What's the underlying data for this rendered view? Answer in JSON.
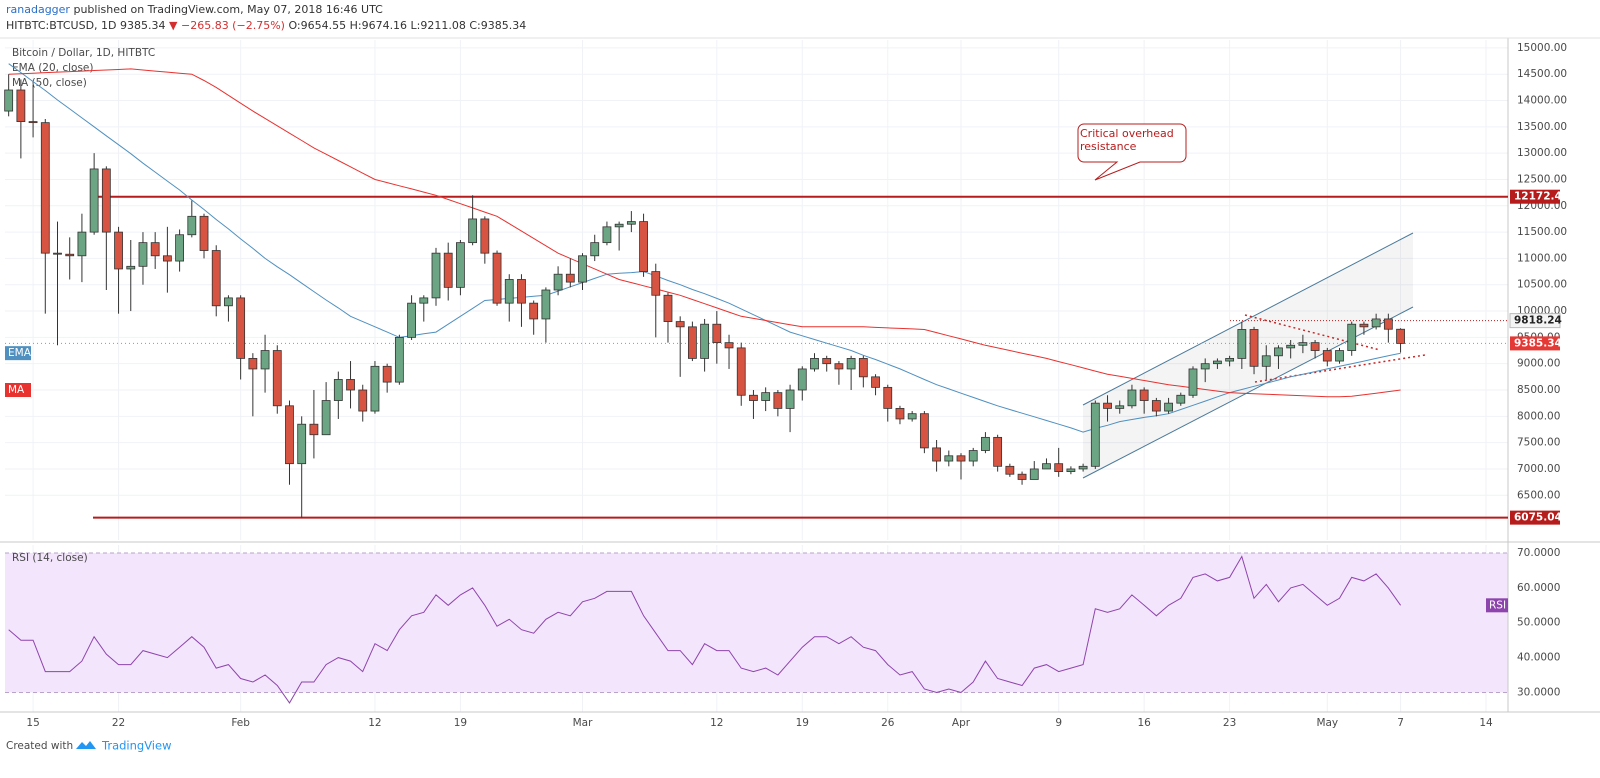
{
  "header": {
    "author": "ranadagger",
    "published": "published on TradingView.com, May 07, 2018 16:46 UTC",
    "symbol": "HITBTC:BTCUSD, 1D",
    "price": "9385.34",
    "arrow": "▼",
    "change": "−265.83 (−2.75%)",
    "ohlc": "O:9654.55 H:9674.16 L:9211.08 C:9385.34"
  },
  "footer": {
    "created": "Created with",
    "brand": "TradingView"
  },
  "chart_data": [
    {
      "type": "candlestick",
      "title": "Bitcoin / Dollar, 1D, HITBTC",
      "up_color": "#6ba583",
      "down_color": "#d75442",
      "open": [
        13800,
        14200,
        13600,
        13580,
        11100,
        11080,
        11050,
        11500,
        12700,
        11500,
        10800,
        10850,
        11300,
        11050,
        10950,
        11450,
        11800,
        11150,
        10100,
        10250,
        9100,
        8900,
        9250,
        8200,
        7100,
        7850,
        7650,
        8300,
        8700,
        8500,
        8100,
        8950,
        8650,
        9500,
        10150,
        10250,
        11100,
        10450,
        11300,
        11750,
        11100,
        10150,
        10600,
        10150,
        9850,
        10400,
        10700,
        10550,
        11050,
        11300,
        11600,
        11650,
        11700,
        10750,
        10300,
        9800,
        9700,
        9100,
        9750,
        9400,
        9300,
        8400,
        8300,
        8450,
        8150,
        8500,
        8900,
        9100,
        9000,
        8900,
        9100,
        8750,
        8550,
        8150,
        7950,
        8050,
        7400,
        7150,
        7250,
        7150,
        7350,
        7600,
        7050,
        6900,
        6800,
        7000,
        7100,
        6950,
        7000,
        7050,
        8250,
        8150,
        8200,
        8500,
        8300,
        8100,
        8250,
        8400,
        8900,
        9000,
        9050,
        9100,
        9650,
        8950,
        9150,
        9300,
        9350,
        9400,
        9250,
        9050,
        9250,
        9750,
        9700,
        9850,
        9654.55
      ],
      "high": [
        14500,
        14400,
        14300,
        13650,
        11700,
        11400,
        11850,
        13000,
        12750,
        11600,
        11350,
        11500,
        11500,
        11600,
        11550,
        12100,
        11850,
        11250,
        10300,
        10300,
        9200,
        9550,
        9350,
        8300,
        8000,
        8500,
        8650,
        8850,
        9050,
        8600,
        9050,
        9000,
        9550,
        10300,
        10300,
        11200,
        11300,
        11350,
        12200,
        11800,
        11150,
        10700,
        10700,
        10200,
        10450,
        10850,
        11000,
        11100,
        11450,
        11700,
        11700,
        11900,
        11850,
        10900,
        10350,
        9900,
        9800,
        9850,
        10000,
        9550,
        9400,
        8500,
        8550,
        8500,
        8600,
        8950,
        9200,
        9150,
        9050,
        9150,
        9150,
        8800,
        8600,
        8200,
        8100,
        8100,
        7550,
        7350,
        7300,
        7400,
        7700,
        7650,
        7100,
        6950,
        7150,
        7200,
        7400,
        7050,
        7100,
        8300,
        8400,
        8300,
        8600,
        8550,
        8350,
        8350,
        8450,
        8950,
        9100,
        9100,
        9150,
        9800,
        9700,
        9350,
        9350,
        9450,
        9550,
        9450,
        9300,
        9300,
        9800,
        9800,
        9950,
        9950,
        9674.16
      ],
      "low": [
        13700,
        12900,
        13300,
        9950,
        9350,
        10600,
        10550,
        11450,
        10400,
        9950,
        10000,
        10500,
        10800,
        10350,
        10750,
        11400,
        11000,
        9900,
        9800,
        8700,
        8000,
        8450,
        8050,
        6700,
        6075.04,
        7200,
        7650,
        7950,
        8150,
        7900,
        8050,
        8450,
        8600,
        9450,
        9800,
        10100,
        10200,
        10300,
        11250,
        10900,
        10100,
        9800,
        9700,
        9550,
        9400,
        10300,
        10450,
        10400,
        10950,
        11250,
        11150,
        11500,
        10650,
        9500,
        9400,
        8750,
        9050,
        8850,
        9000,
        8900,
        8200,
        7950,
        8100,
        8000,
        7700,
        8300,
        8850,
        8850,
        8600,
        8500,
        8550,
        8400,
        7900,
        7850,
        7900,
        7300,
        6950,
        7050,
        6800,
        7050,
        7300,
        6950,
        6850,
        6700,
        6800,
        7000,
        6850,
        6900,
        6950,
        7000,
        7900,
        8050,
        8150,
        8050,
        8000,
        8050,
        8200,
        8350,
        8650,
        8900,
        8950,
        8900,
        8800,
        8700,
        8900,
        9100,
        9200,
        9100,
        8950,
        9000,
        9150,
        9550,
        9650,
        9400,
        9211.08
      ],
      "close": [
        14200,
        13600,
        13580,
        11100,
        11080,
        11050,
        11500,
        12700,
        11500,
        10800,
        10850,
        11300,
        11050,
        10950,
        11450,
        11800,
        11150,
        10100,
        10250,
        9100,
        8900,
        9250,
        8200,
        7100,
        7850,
        7650,
        8300,
        8700,
        8500,
        8100,
        8950,
        8650,
        9500,
        10150,
        10250,
        11100,
        10450,
        11300,
        11750,
        11100,
        10150,
        10600,
        10150,
        9850,
        10400,
        10700,
        10550,
        11050,
        11300,
        11600,
        11650,
        11700,
        10750,
        10300,
        9800,
        9700,
        9100,
        9750,
        9400,
        9300,
        8400,
        8300,
        8450,
        8150,
        8500,
        8900,
        9100,
        9000,
        8900,
        9100,
        8750,
        8550,
        8150,
        7950,
        8050,
        7400,
        7150,
        7250,
        7150,
        7350,
        7600,
        7050,
        6900,
        6800,
        7000,
        7100,
        6950,
        7000,
        7050,
        8250,
        8150,
        8200,
        8500,
        8300,
        8100,
        8250,
        8400,
        8900,
        9000,
        9050,
        9100,
        9650,
        8950,
        9150,
        9300,
        9350,
        9400,
        9250,
        9050,
        9250,
        9750,
        9700,
        9850,
        9654.55,
        9385.34
      ],
      "indicators": [
        {
          "name": "EMA (20, close)",
          "tag": "EMA",
          "color": "#4f90c0",
          "values": [
            14700,
            14530,
            14360,
            14190,
            14010,
            13840,
            13670,
            13500,
            13330,
            13160,
            12990,
            12810,
            12640,
            12470,
            12300,
            12110,
            11930,
            11740,
            11560,
            11370,
            11190,
            11000,
            10840,
            10690,
            10530,
            10370,
            10210,
            10060,
            9900,
            9800,
            9700,
            9600,
            9500,
            9530,
            9570,
            9600,
            9750,
            9900,
            10050,
            10200,
            10220,
            10240,
            10260,
            10280,
            10300,
            10380,
            10460,
            10540,
            10620,
            10700,
            10720,
            10730,
            10750,
            10670,
            10580,
            10500,
            10410,
            10330,
            10240,
            10150,
            10040,
            9930,
            9820,
            9710,
            9600,
            9530,
            9460,
            9390,
            9320,
            9250,
            9160,
            9080,
            8990,
            8900,
            8800,
            8700,
            8600,
            8520,
            8440,
            8360,
            8280,
            8200,
            8130,
            8060,
            7990,
            7920,
            7850,
            7780,
            7700,
            7770,
            7830,
            7900,
            7940,
            7980,
            8010,
            8050,
            8130,
            8210,
            8290,
            8370,
            8450,
            8510,
            8570,
            8630,
            8690,
            8750,
            8800,
            8850,
            8900,
            8950,
            9000,
            9050,
            9100,
            9150,
            9200
          ]
        },
        {
          "name": "MA (50, close)",
          "tag": "MA",
          "color": "#e8322f",
          "values": [
            14500,
            14510,
            14520,
            14530,
            14540,
            14550,
            14560,
            14570,
            14580,
            14590,
            14600,
            14580,
            14560,
            14540,
            14520,
            14500,
            14380,
            14250,
            14100,
            13950,
            13800,
            13660,
            13520,
            13380,
            13240,
            13100,
            12980,
            12860,
            12740,
            12620,
            12500,
            12440,
            12380,
            12320,
            12260,
            12200,
            12120,
            12040,
            11960,
            11880,
            11800,
            11660,
            11520,
            11380,
            11240,
            11100,
            11000,
            10900,
            10800,
            10700,
            10600,
            10540,
            10480,
            10420,
            10360,
            10300,
            10220,
            10140,
            10060,
            9980,
            9900,
            9860,
            9820,
            9780,
            9740,
            9700,
            9700,
            9700,
            9700,
            9700,
            9700,
            9690,
            9680,
            9670,
            9660,
            9650,
            9590,
            9530,
            9470,
            9410,
            9350,
            9300,
            9250,
            9200,
            9150,
            9100,
            9040,
            8980,
            8920,
            8860,
            8800,
            8760,
            8720,
            8680,
            8640,
            8600,
            8570,
            8540,
            8510,
            8480,
            8450,
            8440,
            8430,
            8420,
            8410,
            8400,
            8390,
            8380,
            8370,
            8370,
            8380,
            8410,
            8440,
            8470,
            8500
          ]
        }
      ],
      "levels": [
        {
          "value": 12172.43,
          "color": "#b71c1c"
        },
        {
          "value": 6075.04,
          "color": "#b71c1c"
        }
      ],
      "marker_level": 9818.24,
      "annotation": "Critical overhead resistance",
      "ylim": [
        5650,
        15150
      ],
      "yticks": [
        {
          "value": 6500,
          "label": "6500.00"
        },
        {
          "value": 7000,
          "label": "7000.00"
        },
        {
          "value": 7500,
          "label": "7500.00"
        },
        {
          "value": 8000,
          "label": "8000.00"
        },
        {
          "value": 8500,
          "label": "8500.00"
        },
        {
          "value": 9000,
          "label": "9000.00"
        },
        {
          "value": 9500,
          "label": "9500.00"
        },
        {
          "value": 10000,
          "label": "10000.00"
        },
        {
          "value": 10500,
          "label": "10500.00"
        },
        {
          "value": 11000,
          "label": "11000.00"
        },
        {
          "value": 11500,
          "label": "11500.00"
        },
        {
          "value": 12000,
          "label": "12000.00"
        },
        {
          "value": 12500,
          "label": "12500.00"
        },
        {
          "value": 13000,
          "label": "13000.00"
        },
        {
          "value": 13500,
          "label": "13500.00"
        },
        {
          "value": 14000,
          "label": "14000.00"
        },
        {
          "value": 14500,
          "label": "14500.00"
        },
        {
          "value": 15000,
          "label": "15000.00"
        }
      ],
      "xlim": [
        -0.3,
        122.8
      ],
      "xticks": [
        {
          "value": 2,
          "label": "15"
        },
        {
          "value": 9,
          "label": "22"
        },
        {
          "value": 19,
          "label": "Feb"
        },
        {
          "value": 30,
          "label": "12"
        },
        {
          "value": 37,
          "label": "19"
        },
        {
          "value": 47,
          "label": "Mar"
        },
        {
          "value": 58,
          "label": "12"
        },
        {
          "value": 65,
          "label": "19"
        },
        {
          "value": 72,
          "label": "26"
        },
        {
          "value": 78,
          "label": "Apr"
        },
        {
          "value": 86,
          "label": "9"
        },
        {
          "value": 93,
          "label": "16"
        },
        {
          "value": 100,
          "label": "23"
        },
        {
          "value": 108,
          "label": "May"
        },
        {
          "value": 114,
          "label": "7"
        },
        {
          "value": 121,
          "label": "14"
        }
      ],
      "grid": true
    },
    {
      "type": "line",
      "title": "RSI (14, close)",
      "series": [
        {
          "name": "RSI",
          "color": "#8e44ad",
          "values": [
            48,
            45,
            45,
            36,
            36,
            36,
            39,
            46,
            41,
            38,
            38,
            42,
            41,
            40,
            43,
            46,
            43,
            37,
            38,
            34,
            33,
            35,
            32,
            27,
            33,
            33,
            38,
            40,
            39,
            36,
            44,
            42,
            48,
            52,
            53,
            58,
            55,
            58,
            60,
            55,
            49,
            51,
            48,
            47,
            51,
            53,
            52,
            56,
            57,
            59,
            59,
            59,
            52,
            47,
            42,
            42,
            38,
            44,
            42,
            42,
            37,
            36,
            37,
            35,
            39,
            43,
            46,
            46,
            44,
            46,
            43,
            42,
            38,
            35,
            36,
            31,
            30,
            31,
            30,
            33,
            39,
            34,
            33,
            32,
            37,
            38,
            36,
            37,
            38,
            54,
            53,
            54,
            58,
            55,
            52,
            55,
            57,
            63,
            64,
            62,
            63,
            69,
            57,
            61,
            56,
            60,
            61,
            58,
            55,
            57,
            63,
            62,
            64,
            60,
            55
          ]
        }
      ],
      "band": [
        30,
        70
      ],
      "band_color": "#f3e5fc",
      "ylim": [
        24.4,
        72.3
      ],
      "yticks": [
        {
          "value": 30,
          "label": "30.0000"
        },
        {
          "value": 40,
          "label": "40.0000"
        },
        {
          "value": 50,
          "label": "50.0000"
        },
        {
          "value": 60,
          "label": "60.0000"
        },
        {
          "value": 70,
          "label": "70.0000"
        }
      ]
    }
  ]
}
